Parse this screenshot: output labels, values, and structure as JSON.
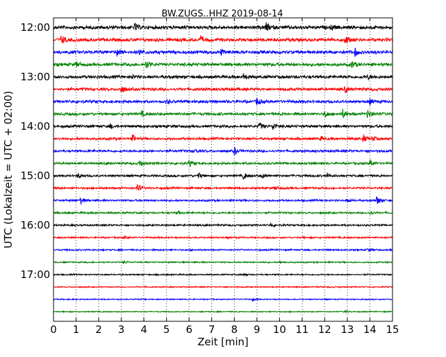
{
  "chart_data": {
    "type": "line",
    "title": "BW.ZUGS..HHZ 2019-08-14",
    "xlabel": "Zeit  [min]",
    "ylabel": "UTC (Lokalzeit = UTC + 02:00)",
    "xlim": [
      0,
      15
    ],
    "x_ticks": [
      "0",
      "1",
      "2",
      "3",
      "4",
      "5",
      "6",
      "7",
      "8",
      "9",
      "10",
      "11",
      "12",
      "13",
      "14",
      "15"
    ],
    "grid": "vertical dotted",
    "row_interval_minutes": 15,
    "y_ticks": [
      {
        "label": "12:00",
        "row": 0
      },
      {
        "label": "13:00",
        "row": 4
      },
      {
        "label": "14:00",
        "row": 8
      },
      {
        "label": "15:00",
        "row": 12
      },
      {
        "label": "16:00",
        "row": 16
      },
      {
        "label": "17:00",
        "row": 20
      }
    ],
    "trace_colors": [
      "#000000",
      "#ff0000",
      "#0000ff",
      "#008000"
    ],
    "series": [
      {
        "row": 0,
        "start": "12:00",
        "events": [
          [
            3.6,
            0.8
          ],
          [
            9.4,
            1.0
          ],
          [
            12.3,
            0.5
          ]
        ]
      },
      {
        "row": 1,
        "start": "12:15",
        "events": [
          [
            0.35,
            1.0
          ],
          [
            6.5,
            0.6
          ],
          [
            12.9,
            1.0
          ]
        ]
      },
      {
        "row": 2,
        "start": "12:30",
        "events": [
          [
            2.8,
            0.8
          ],
          [
            3.8,
            0.6
          ],
          [
            7.4,
            0.6
          ],
          [
            13.3,
            1.0
          ]
        ]
      },
      {
        "row": 3,
        "start": "12:45",
        "events": [
          [
            1.0,
            0.5
          ],
          [
            4.1,
            0.8
          ],
          [
            13.2,
            0.8
          ]
        ]
      },
      {
        "row": 4,
        "start": "13:00",
        "events": [
          [
            3.4,
            0.5
          ],
          [
            8.4,
            0.6
          ],
          [
            13.9,
            0.5
          ]
        ]
      },
      {
        "row": 5,
        "start": "13:15",
        "events": [
          [
            3.0,
            0.8
          ],
          [
            12.9,
            0.7
          ]
        ]
      },
      {
        "row": 6,
        "start": "13:30",
        "events": [
          [
            5.0,
            0.5
          ],
          [
            9.0,
            0.8
          ],
          [
            14.0,
            0.5
          ]
        ]
      },
      {
        "row": 7,
        "start": "13:45",
        "events": [
          [
            3.9,
            0.5
          ],
          [
            12.0,
            0.8
          ],
          [
            12.8,
            0.9
          ],
          [
            13.9,
            1.0
          ]
        ]
      },
      {
        "row": 8,
        "start": "14:00",
        "events": [
          [
            2.5,
            0.5
          ],
          [
            9.1,
            0.8
          ],
          [
            9.7,
            0.8
          ]
        ]
      },
      {
        "row": 9,
        "start": "14:15",
        "events": [
          [
            3.5,
            0.8
          ],
          [
            11.8,
            0.5
          ],
          [
            13.7,
            0.8
          ],
          [
            14.1,
            0.5
          ]
        ]
      },
      {
        "row": 10,
        "start": "14:30",
        "events": [
          [
            6.2,
            0.4
          ],
          [
            8.0,
            0.8
          ]
        ]
      },
      {
        "row": 11,
        "start": "14:45",
        "events": [
          [
            3.8,
            0.8
          ],
          [
            6.0,
            0.6
          ],
          [
            14.0,
            0.9
          ]
        ]
      },
      {
        "row": 12,
        "start": "15:00",
        "events": [
          [
            1.1,
            0.5
          ],
          [
            6.4,
            0.6
          ],
          [
            8.4,
            0.8
          ],
          [
            9.2,
            0.5
          ],
          [
            12.1,
            0.5
          ]
        ]
      },
      {
        "row": 13,
        "start": "15:15",
        "events": [
          [
            3.7,
            1.0
          ],
          [
            9.8,
            0.4
          ]
        ]
      },
      {
        "row": 14,
        "start": "15:30",
        "events": [
          [
            1.2,
            0.8
          ],
          [
            13.0,
            0.4
          ],
          [
            14.3,
            1.0
          ]
        ]
      },
      {
        "row": 15,
        "start": "15:45",
        "events": [
          [
            5.5,
            0.3
          ],
          [
            14.0,
            0.5
          ]
        ]
      },
      {
        "row": 16,
        "start": "16:00",
        "events": [
          [
            9.6,
            0.4
          ]
        ]
      },
      {
        "row": 17,
        "start": "16:15",
        "events": [
          [
            3.1,
            0.3
          ]
        ]
      },
      {
        "row": 18,
        "start": "16:30",
        "events": [
          [
            13.9,
            0.3
          ]
        ]
      },
      {
        "row": 19,
        "start": "16:45",
        "events": [
          [
            3.1,
            0.3
          ],
          [
            10.0,
            0.3
          ]
        ]
      },
      {
        "row": 20,
        "start": "17:00",
        "events": [
          [
            8.4,
            0.3
          ]
        ]
      },
      {
        "row": 21,
        "start": "17:15",
        "events": []
      },
      {
        "row": 22,
        "start": "17:30",
        "events": [
          [
            8.8,
            0.3
          ]
        ]
      },
      {
        "row": 23,
        "start": "17:45",
        "events": [
          [
            12.9,
            0.3
          ]
        ]
      }
    ]
  }
}
